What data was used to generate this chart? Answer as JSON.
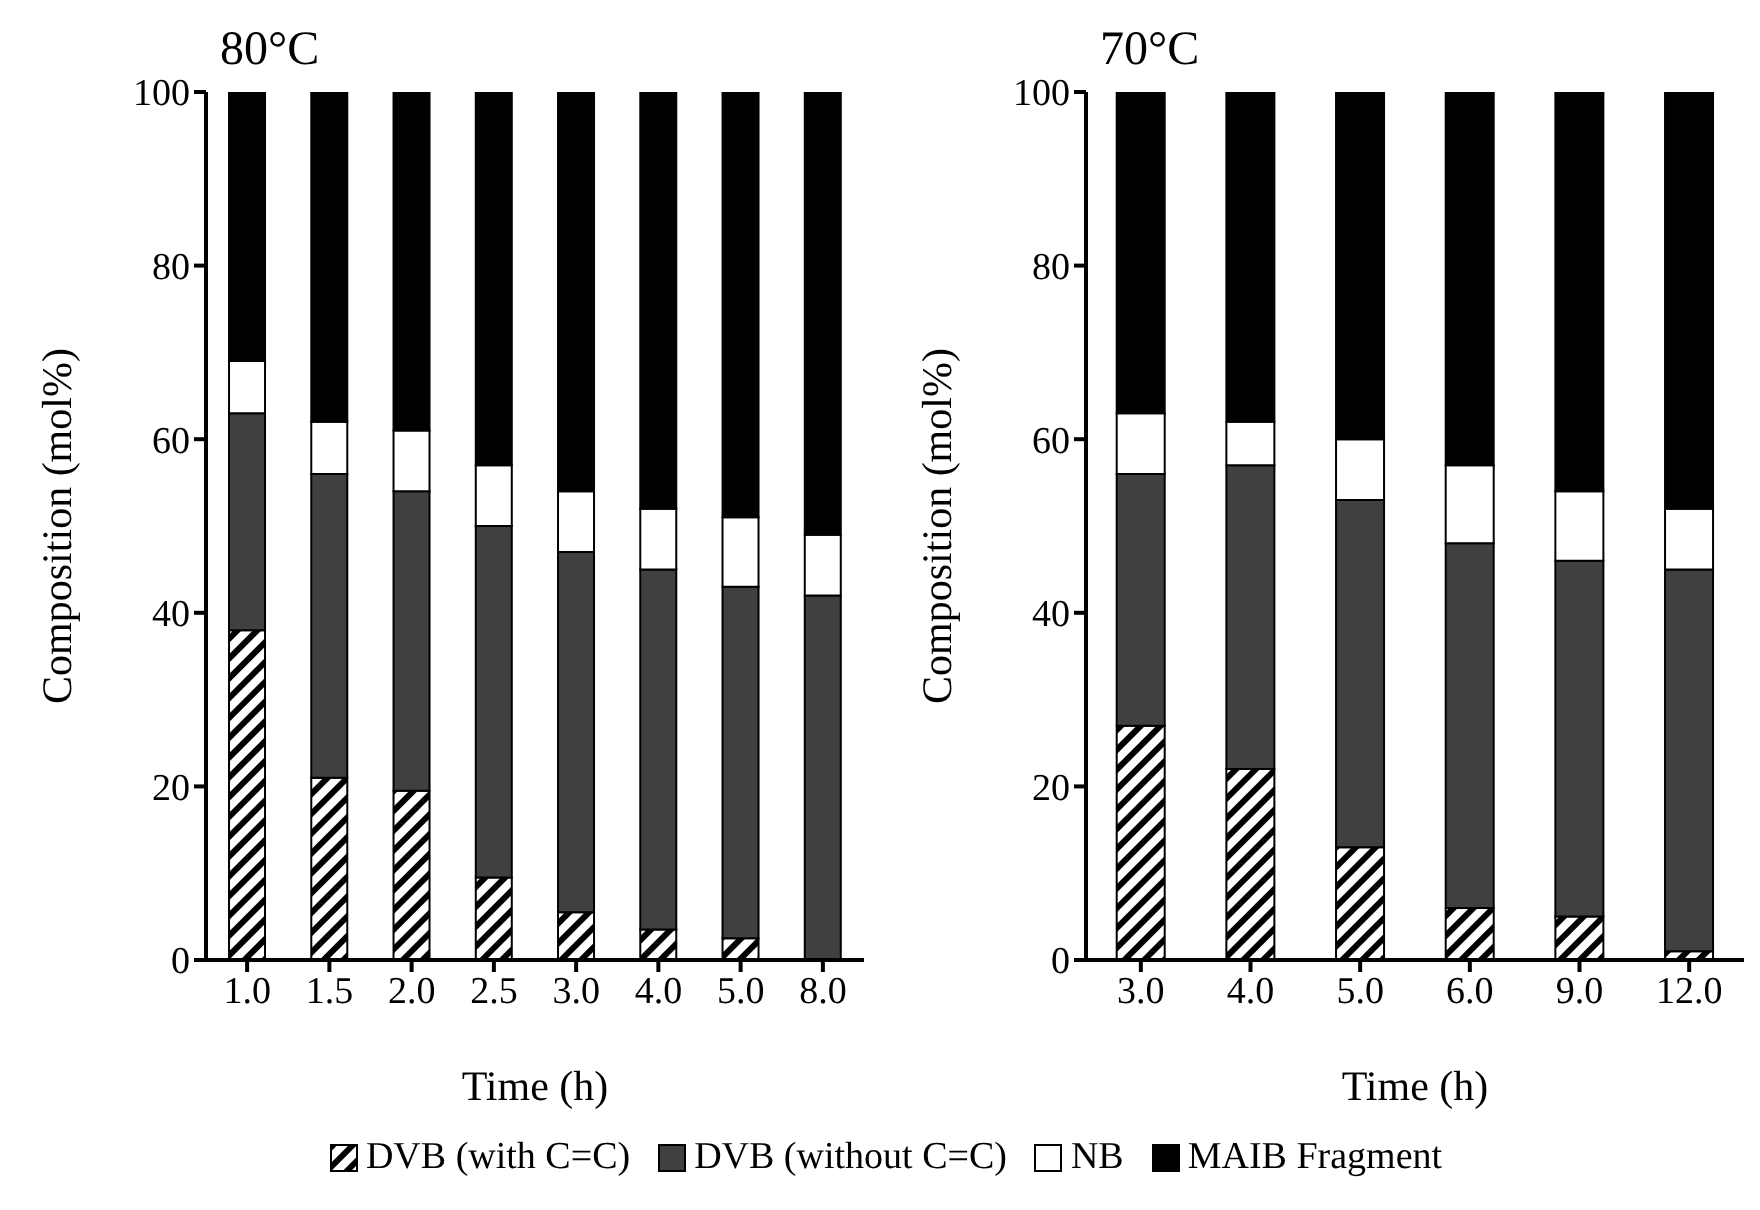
{
  "chart_data": [
    {
      "type": "bar",
      "title": "80°C",
      "xlabel": "Time (h)",
      "ylabel": "Composition (mol%)",
      "stacked": true,
      "legend": "bottom",
      "categories": [
        "1.0",
        "1.5",
        "2.0",
        "2.5",
        "3.0",
        "4.0",
        "5.0",
        "8.0"
      ],
      "ylim": [
        0,
        100
      ],
      "yticks": [
        0,
        20,
        40,
        60,
        80,
        100
      ],
      "series": [
        {
          "name": "DVB (with C=C)",
          "color": "#000000",
          "values": [
            38,
            21,
            19.5,
            9.5,
            5.5,
            3.5,
            2.5,
            0
          ]
        },
        {
          "name": "DVB (without C=C)",
          "color": "#404040",
          "values": [
            25,
            35,
            34.5,
            40.5,
            41.5,
            41.5,
            40.5,
            42
          ]
        },
        {
          "name": "NB",
          "color": "#ffffff",
          "values": [
            6,
            6,
            7,
            7,
            7,
            7,
            8,
            7
          ]
        },
        {
          "name": "MAIB Fragment",
          "color": "#000000",
          "values": [
            31,
            38,
            39,
            43,
            46,
            48,
            49,
            51
          ]
        }
      ]
    },
    {
      "type": "bar",
      "title": "70°C",
      "xlabel": "Time (h)",
      "ylabel": "Composition (mol%)",
      "stacked": true,
      "categories": [
        "3.0",
        "4.0",
        "5.0",
        "6.0",
        "9.0",
        "12.0"
      ],
      "ylim": [
        0,
        100
      ],
      "yticks": [
        0,
        20,
        40,
        60,
        80,
        100
      ],
      "series": [
        {
          "color": "#000000",
          "values": [
            27,
            22,
            13,
            6,
            5,
            1
          ]
        },
        {
          "color": "#404040",
          "values": [
            29,
            35,
            40,
            42,
            41,
            44
          ]
        },
        {
          "color": "#ffffff",
          "values": [
            7,
            5,
            7,
            9,
            8,
            7
          ]
        },
        {
          "color": "#000000",
          "values": [
            37,
            38,
            40,
            43,
            46,
            48
          ]
        }
      ]
    }
  ]
}
